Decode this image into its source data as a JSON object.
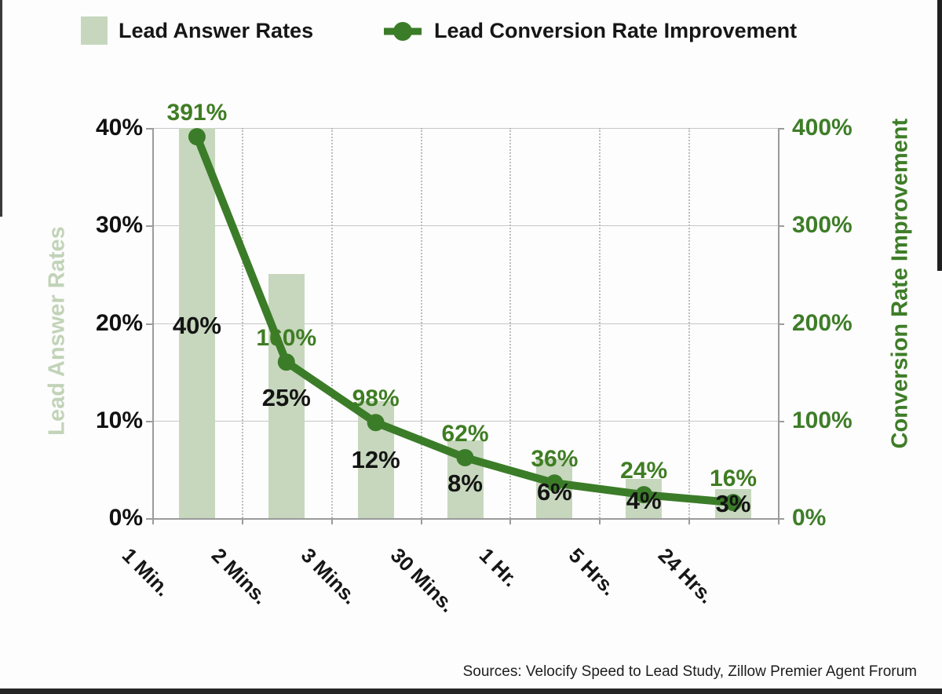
{
  "legend": {
    "items": [
      {
        "label": "Lead Answer Rates",
        "marker": "bar-swatch"
      },
      {
        "label": "Lead Conversion Rate Improvement",
        "marker": "line-dot"
      }
    ]
  },
  "chart_data": {
    "type": "bar+line combo",
    "categories": [
      "1 Min.",
      "2 Mins.",
      "3 Mins.",
      "30 Mins.",
      "1 Hr.",
      "5 Hrs.",
      "24 Hrs."
    ],
    "series": [
      {
        "name": "Lead Answer Rates",
        "type": "bar",
        "axis": "left",
        "values": [
          40,
          25,
          12,
          8,
          6,
          4,
          3
        ],
        "labels": [
          "40%",
          "25%",
          "12%",
          "8%",
          "6%",
          "4%",
          "3%"
        ]
      },
      {
        "name": "Lead Conversion Rate Improvement",
        "type": "line",
        "axis": "right",
        "values": [
          391,
          160,
          98,
          62,
          36,
          24,
          16
        ],
        "labels": [
          "391%",
          "160%",
          "98%",
          "62%",
          "36%",
          "24%",
          "16%"
        ]
      }
    ],
    "left_axis": {
      "title": "Lead Answer Rates",
      "tick_labels": [
        "40%",
        "30%",
        "20%",
        "10%",
        "0%"
      ],
      "range": [
        0,
        40
      ]
    },
    "right_axis": {
      "title": "Conversion Rate Improvement",
      "tick_labels": [
        "400%",
        "300%",
        "200%",
        "100%",
        "0%"
      ],
      "range": [
        0,
        400
      ]
    },
    "grid": {
      "horizontal": "solid",
      "vertical": "dotted"
    },
    "legend_position": "top"
  },
  "source": "Sources: Velocify Speed to Lead Study, Zillow Premier Agent Frorum",
  "colors": {
    "bar_fill": "#c6d7bd",
    "line_green": "#3b7c28",
    "label_green": "#3f7d23",
    "right_axis_green": "#3e7d28",
    "left_title_sage": "#c2d3b8",
    "black_text": "#141414"
  }
}
